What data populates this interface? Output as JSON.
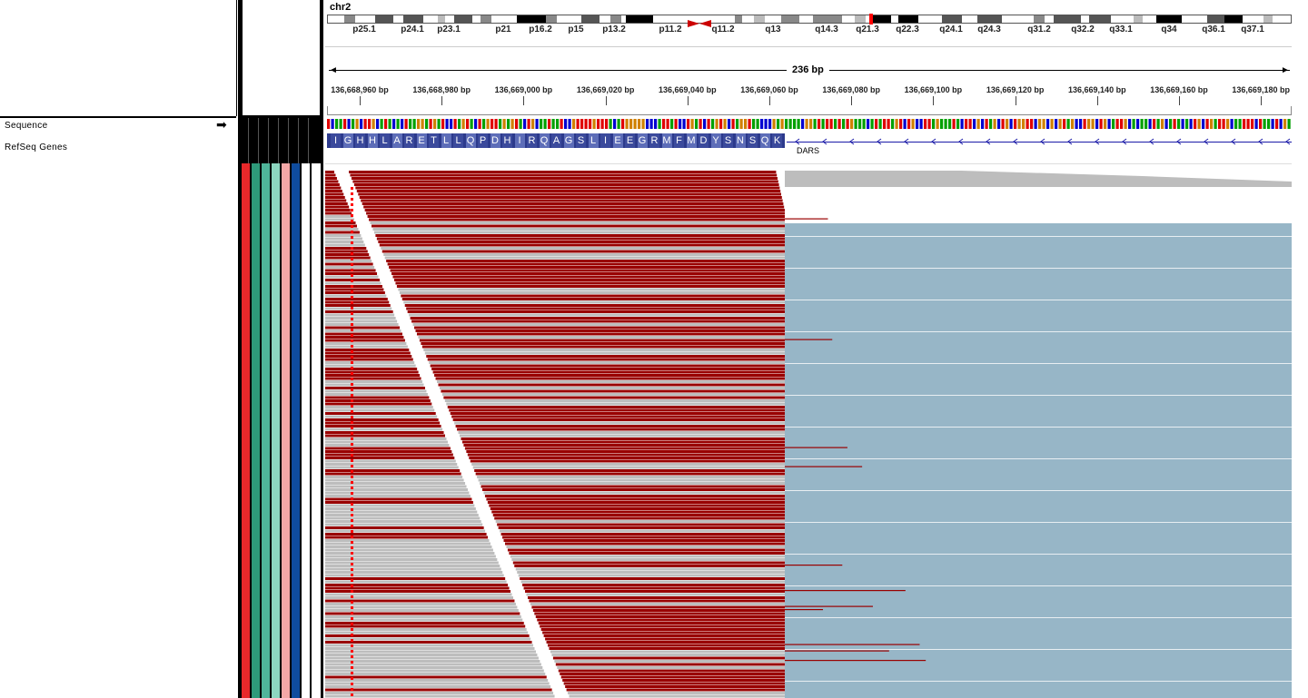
{
  "chromosome": {
    "name": "chr2",
    "bands": [
      "p25.1",
      "p24.1",
      "p23.1",
      "p21",
      "p16.2",
      "p15",
      "p13.2",
      "p11.2",
      "q11.2",
      "q13",
      "q14.3",
      "q21.3",
      "q22.3",
      "q24.1",
      "q24.3",
      "q31.2",
      "q32.2",
      "q33.1",
      "q34",
      "q36.1",
      "q37.1"
    ]
  },
  "ruler": {
    "span_label": "236 bp",
    "ticks": [
      "136,668,960 bp",
      "136,668,980 bp",
      "136,669,000 bp",
      "136,669,020 bp",
      "136,669,040 bp",
      "136,669,060 bp",
      "136,669,080 bp",
      "136,669,100 bp",
      "136,669,120 bp",
      "136,669,140 bp",
      "136,669,160 bp",
      "136,669,180 bp"
    ]
  },
  "tracks": {
    "sequence_label": "Sequence",
    "refseq_label": "RefSeq Genes",
    "gene_name": "DARS",
    "amino_acids": [
      "I",
      "G",
      "H",
      "H",
      "L",
      "A",
      "R",
      "E",
      "T",
      "L",
      "L",
      "Q",
      "P",
      "D",
      "H",
      "I",
      "R",
      "Q",
      "A",
      "G",
      "S",
      "L",
      "I",
      "E",
      "E",
      "G",
      "R",
      "M",
      "F",
      "M",
      "D",
      "Y",
      "S",
      "N",
      "S",
      "Q",
      "K"
    ]
  },
  "icons": {
    "strand_arrow": "right-arrow-icon"
  },
  "colors": {
    "read_dark_red": "#990000",
    "read_gray": "#bdbdbd",
    "read_blue": "#97b6c7",
    "mismatch_red": "#ff0000",
    "attr_red": "#e8282a",
    "attr_teal": "#2e9a7a",
    "attr_green": "#4fb59a",
    "attr_mint": "#8dd6c0",
    "attr_pink": "#f4a7a7",
    "attr_blue": "#0f4c9e"
  }
}
